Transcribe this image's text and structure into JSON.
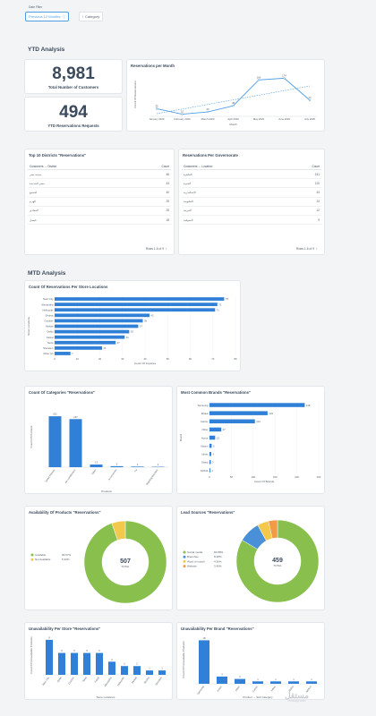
{
  "filter": {
    "label": "Date Filter",
    "button": "Previous 12 Months",
    "category_button": "Category"
  },
  "ytd": {
    "section_title": "YTD Analysis",
    "customers": {
      "value": "8,981",
      "label": "Total Number of Customers"
    },
    "requests": {
      "value": "494",
      "label": "YTD Reservations Requests"
    }
  },
  "rpm": {
    "title": "Reservations per Month",
    "ylabel": "Count Of Reservations",
    "xlabel": "Month",
    "categories": [
      "January 2020",
      "February 2020",
      "March 2020",
      "April 2020",
      "May 2020",
      "June 2020",
      "July 2020"
    ],
    "values": [
      35,
      10,
      20,
      48,
      166,
      174,
      74
    ],
    "ylim": [
      0,
      200
    ]
  },
  "districts": {
    "title": "Top 10 Districts \"Reservations\"",
    "col1": "Customers → District",
    "col2": "Count",
    "rows": [
      [
        "مدينة نصر",
        "46"
      ],
      [
        "مصر الجديدة",
        "43"
      ],
      [
        "التجمع",
        "40"
      ],
      [
        "الهرم",
        "29"
      ],
      [
        "المعادي",
        "25"
      ],
      [
        "فيصل",
        "18"
      ]
    ],
    "pager": "Rows 1-6 of 9"
  },
  "governorate": {
    "title": "Reservations Per Governorate",
    "col1": "Customers → Location",
    "col2": "Count",
    "rows": [
      [
        "القاهرة",
        "241"
      ],
      [
        "الجيزة",
        "120"
      ],
      [
        "الإسكندرية",
        "43"
      ],
      [
        "القليوبية",
        "24"
      ],
      [
        "الغربية",
        "12"
      ],
      [
        "المنوفية",
        "9"
      ]
    ],
    "pager": "Rows 1-6 of 9"
  },
  "mtd": {
    "section_title": "MTD Analysis"
  },
  "stores": {
    "title": "Count Of Reservations Per Store Locations",
    "ylabel": "Store Locations",
    "xlabel": "Count Of Inquiries",
    "categories": [
      "Nasr City",
      "Alexandria",
      "Heliopolis",
      "Shubra",
      "October",
      "Mokatt",
      "Dokki",
      "Faisal",
      "Tanta",
      "Sheraton",
      "Other (2)"
    ],
    "values": [
      75,
      72,
      71,
      42,
      39,
      37,
      33,
      31,
      27,
      21,
      7
    ],
    "ticks": [
      0,
      10,
      20,
      30,
      40,
      50,
      60,
      70,
      80
    ]
  },
  "categories_chart": {
    "title": "Count Of Categories \"Reservations\"",
    "ylabel": "Count Of Products",
    "xlabel": "Products",
    "categories": [
      "Smart Phones",
      "Air conditioners",
      "Other",
      "Accessories",
      "TV",
      "Washing Machine"
    ],
    "values": [
      251,
      237,
      13,
      5,
      3,
      2
    ],
    "ylim": [
      0,
      300
    ]
  },
  "brands": {
    "title": "Most Common Brands \"Reservations\"",
    "ylabel": "Brand",
    "xlabel": "Count Of Brands",
    "categories": [
      "Samsung",
      "Midea",
      "Carrier",
      "Other",
      "Honor",
      "Xiaomi",
      "Infinix",
      "Sharp",
      "NOKIA"
    ],
    "values": [
      218,
      133,
      104,
      27,
      13,
      5,
      4,
      3,
      2
    ],
    "ticks": [
      0,
      50,
      100,
      150,
      200,
      250
    ]
  },
  "availability": {
    "title": "Availability Of Products \"Reservations\"",
    "total": "507",
    "total_label": "TOTAL",
    "items": [
      {
        "label": "Available",
        "pct": "94.67%",
        "value": 94.67,
        "color": "#88bf4d"
      },
      {
        "label": "Not Available",
        "pct": "5.33%",
        "value": 5.33,
        "color": "#f2c94c"
      }
    ]
  },
  "lead": {
    "title": "Lead Sources \"Reservations\"",
    "total": "459",
    "total_label": "TOTAL",
    "items": [
      {
        "label": "Social media",
        "pct": "81.88%",
        "value": 81.88,
        "color": "#88bf4d"
      },
      {
        "label": "Branches",
        "pct": "8.28%",
        "value": 8.28,
        "color": "#4a90d9"
      },
      {
        "label": "Word of mouth",
        "pct": "4.36%",
        "value": 4.36,
        "color": "#f2c94c"
      },
      {
        "label": "Website",
        "pct": "3.49%",
        "value": 3.49,
        "color": "#f2994a"
      }
    ]
  },
  "unav_store": {
    "title": "Unavailability Per Store \"Reservations\"",
    "ylabel": "Count Of Unavailable Products",
    "xlabel": "Store Locations",
    "categories": [
      "Nasr City",
      "Dokki",
      "October",
      "Tanta",
      "Faisal",
      "Alexandria",
      "Heliopolis",
      "Mokatt",
      "Shubra",
      "Sheraton"
    ],
    "values": [
      8,
      5,
      5,
      5,
      5,
      3,
      2,
      2,
      1,
      1
    ],
    "ylim": [
      0,
      9
    ]
  },
  "unav_brand": {
    "title": "Unavailability Per Brand \"Reservations\"",
    "ylabel": "Count Of Unavailable Products",
    "xlabel": "Product → Sub Category",
    "categories": [
      "Samsung",
      "Honor",
      "Other",
      "Carrier",
      "Infinix",
      "Midea",
      "NOKIA"
    ],
    "values": [
      18,
      3,
      2,
      1,
      1,
      1,
      1
    ],
    "ylim": [
      0,
      20
    ]
  },
  "watermark": {
    "text": "مستقل",
    "sub": "mostaql.com"
  }
}
